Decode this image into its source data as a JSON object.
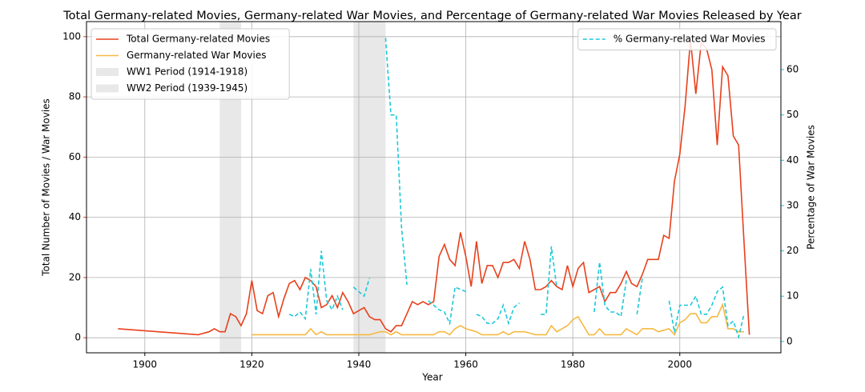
{
  "chart_data": {
    "type": "line",
    "title": "Total Germany-related Movies, Germany-related War Movies, and Percentage of Germany-related War Movies Released by Year",
    "xlabel": "Year",
    "ylabel": "Total Number of Movies / War Movies",
    "y2label": "Percentage of War Movies",
    "xlim": [
      1889.1,
      2018.9
    ],
    "xticks": [
      1900,
      1920,
      1940,
      1960,
      1980,
      2000
    ],
    "ylim": [
      -5,
      105
    ],
    "yticks": [
      0,
      20,
      40,
      60,
      80,
      100
    ],
    "y2lim": [
      -2.5,
      70.6
    ],
    "y2ticks": [
      0,
      10,
      20,
      30,
      40,
      50,
      60
    ],
    "grid": true,
    "legend": "upper left",
    "legend2": "upper right",
    "ycolor": "#e8401c",
    "y2color": "#1ec8d8",
    "series": [
      {
        "name": "Total Germany-related Movies",
        "color": "#e8401c",
        "dashed": false,
        "x": [
          1895,
          1910,
          1912,
          1913,
          1914,
          1915,
          1916,
          1917,
          1918,
          1919,
          1920,
          1921,
          1922,
          1923,
          1924,
          1925,
          1926,
          1927,
          1928,
          1929,
          1930,
          1931,
          1932,
          1933,
          1934,
          1935,
          1936,
          1937,
          1938,
          1939,
          1940,
          1941,
          1942,
          1943,
          1944,
          1945,
          1946,
          1947,
          1948,
          1949,
          1950,
          1951,
          1952,
          1953,
          1954,
          1955,
          1956,
          1957,
          1958,
          1959,
          1960,
          1961,
          1962,
          1963,
          1964,
          1965,
          1966,
          1967,
          1968,
          1969,
          1970,
          1971,
          1972,
          1973,
          1974,
          1975,
          1976,
          1977,
          1978,
          1979,
          1980,
          1981,
          1982,
          1983,
          1984,
          1985,
          1986,
          1987,
          1988,
          1989,
          1990,
          1991,
          1992,
          1993,
          1994,
          1995,
          1996,
          1997,
          1998,
          1999,
          2000,
          2001,
          2002,
          2003,
          2004,
          2005,
          2006,
          2007,
          2008,
          2009,
          2010,
          2011,
          2012,
          2013
        ],
        "values": [
          3,
          1,
          2,
          3,
          2,
          2,
          8,
          7,
          4,
          8,
          19,
          9,
          8,
          14,
          15,
          7,
          13,
          18,
          19,
          16,
          20,
          19,
          17,
          10,
          11,
          14,
          10,
          15,
          12,
          8,
          9,
          10,
          7,
          6,
          6,
          3,
          2,
          4,
          4,
          8,
          12,
          11,
          12,
          11,
          12,
          27,
          31,
          26,
          24,
          35,
          27,
          17,
          32,
          18,
          24,
          24,
          20,
          25,
          25,
          26,
          23,
          32,
          26,
          16,
          16,
          17,
          19,
          17,
          16,
          24,
          17,
          23,
          25,
          15,
          16,
          17,
          12,
          15,
          15,
          18,
          22,
          18,
          17,
          21,
          26,
          26,
          26,
          34,
          33,
          52,
          61,
          77,
          99,
          81,
          98,
          96,
          89,
          64,
          90,
          87,
          67,
          64,
          32,
          1
        ]
      },
      {
        "name": "Germany-related War Movies",
        "color": "#f5b942",
        "dashed": false,
        "x": [
          1920,
          1921,
          1922,
          1923,
          1924,
          1925,
          1926,
          1927,
          1928,
          1929,
          1930,
          1931,
          1932,
          1933,
          1934,
          1935,
          1936,
          1937,
          1938,
          1939,
          1940,
          1941,
          1942,
          1943,
          1944,
          1945,
          1946,
          1947,
          1948,
          1949,
          1950,
          1951,
          1952,
          1953,
          1954,
          1955,
          1956,
          1957,
          1958,
          1959,
          1960,
          1961,
          1962,
          1963,
          1964,
          1965,
          1966,
          1967,
          1968,
          1969,
          1970,
          1971,
          1972,
          1973,
          1974,
          1975,
          1976,
          1977,
          1978,
          1979,
          1980,
          1981,
          1982,
          1983,
          1984,
          1985,
          1986,
          1987,
          1988,
          1989,
          1990,
          1991,
          1992,
          1993,
          1994,
          1995,
          1996,
          1997,
          1998,
          1999,
          2000,
          2001,
          2002,
          2003,
          2004,
          2005,
          2006,
          2007,
          2008,
          2009,
          2010,
          2011,
          2012
        ],
        "values": [
          1,
          1,
          1,
          1,
          1,
          1,
          1,
          1,
          1,
          1,
          1,
          3,
          1,
          2,
          1,
          1,
          1,
          1,
          1,
          1,
          1,
          1,
          1,
          1.5,
          2,
          2,
          1,
          2,
          1,
          1,
          1,
          1,
          1,
          1,
          1,
          2,
          2,
          1,
          3,
          4,
          3,
          2.5,
          2,
          1,
          1,
          1,
          1,
          2,
          1,
          2,
          2,
          2,
          1.5,
          1,
          1,
          1,
          4,
          2,
          3,
          4,
          6,
          7,
          4,
          1,
          1,
          3,
          1,
          1,
          1,
          1,
          3,
          2,
          1,
          3,
          3,
          3,
          2,
          2.5,
          3,
          1,
          5,
          6,
          8,
          8,
          5,
          5,
          7,
          7,
          11,
          3,
          3,
          2,
          2
        ]
      },
      {
        "name": "% Germany-related War Movies",
        "color": "#1ec8d8",
        "dashed": true,
        "axis": "y2",
        "x": [
          1927,
          1928,
          1929,
          1930,
          1931,
          1932,
          1933,
          1934,
          1935,
          1936,
          1937,
          1938,
          1939,
          1940,
          1941,
          1942,
          1943,
          1944,
          1945,
          1946,
          1947,
          1948,
          1949,
          1950,
          1951,
          1952,
          1953,
          1954,
          1955,
          1956,
          1957,
          1958,
          1959,
          1960,
          1961,
          1962,
          1963,
          1964,
          1965,
          1966,
          1967,
          1968,
          1969,
          1970,
          1971,
          1972,
          1973,
          1974,
          1975,
          1976,
          1977,
          1978,
          1979,
          1980,
          1981,
          1982,
          1983,
          1984,
          1985,
          1986,
          1987,
          1988,
          1989,
          1990,
          1991,
          1992,
          1993,
          1994,
          1995,
          1996,
          1997,
          1998,
          1999,
          2000,
          2001,
          2002,
          2003,
          2004,
          2005,
          2006,
          2007,
          2008,
          2009,
          2010,
          2011,
          2012
        ],
        "values": [
          6,
          5.5,
          6.5,
          5,
          16,
          6,
          20,
          9,
          7,
          10,
          7,
          null,
          12,
          11,
          10,
          14,
          null,
          null,
          67,
          50,
          50,
          25,
          12.5,
          null,
          null,
          null,
          9,
          8,
          7,
          6.5,
          4,
          12,
          11.5,
          11,
          null,
          6,
          5.5,
          4,
          4,
          5,
          8,
          4,
          7.5,
          8.5,
          null,
          null,
          null,
          6,
          6,
          21,
          12,
          null,
          null,
          null,
          null,
          null,
          null,
          6.5,
          17.5,
          8,
          6.5,
          6.5,
          5.5,
          13.5,
          null,
          6,
          14,
          null,
          null,
          11.5,
          null,
          9,
          2,
          8,
          8,
          8,
          10,
          6,
          6,
          8,
          11,
          12,
          3.5,
          4.5,
          1,
          6
        ]
      }
    ],
    "spans": [
      {
        "name": "WW1 Period (1914-1918)",
        "start": 1914,
        "end": 1918,
        "color": "#d9d9d9"
      },
      {
        "name": "WW2 Period (1939-1945)",
        "start": 1939,
        "end": 1945,
        "color": "#d9d9d9"
      }
    ]
  }
}
